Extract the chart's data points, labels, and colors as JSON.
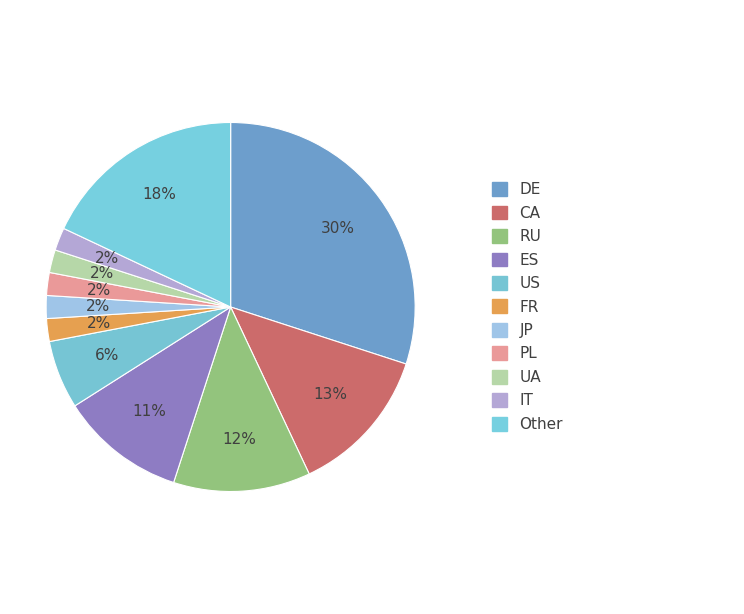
{
  "labels": [
    "DE",
    "CA",
    "RU",
    "ES",
    "US",
    "FR",
    "JP",
    "PL",
    "UA",
    "IT",
    "Other"
  ],
  "values": [
    30,
    13,
    12,
    11,
    6,
    2,
    2,
    2,
    2,
    2,
    18
  ],
  "colors": [
    "#6d9ecc",
    "#cc6b6b",
    "#93c47d",
    "#8e7cc3",
    "#76c5d4",
    "#e6a050",
    "#9fc5e8",
    "#ea9999",
    "#b6d7a8",
    "#b4a7d6",
    "#76d0e0"
  ],
  "background_color": "#ffffff",
  "legend_labels": [
    "DE",
    "CA",
    "RU",
    "ES",
    "US",
    "FR",
    "JP",
    "PL",
    "UA",
    "IT",
    "Other"
  ],
  "startangle": 90,
  "figsize": [
    7.44,
    6.14
  ],
  "dpi": 100
}
